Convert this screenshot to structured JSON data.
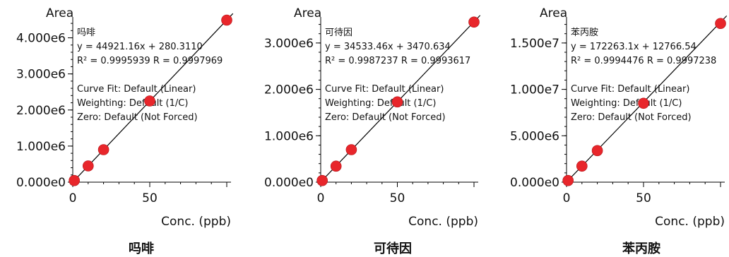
{
  "chart_data": [
    {
      "type": "scatter",
      "title": "吗啡",
      "ylabel": "Area",
      "xlabel": "Conc. (ppb)",
      "xlim": [
        0,
        100
      ],
      "ylim": [
        0,
        4500000
      ],
      "xticks": [
        0,
        50
      ],
      "yticks": [
        0,
        1000000,
        2000000,
        3000000,
        4000000
      ],
      "ytick_labels": [
        "0.000e0",
        "1.000e6",
        "2.000e6",
        "3.000e6",
        "4.000e6"
      ],
      "xtick_labels": [
        "0",
        "50"
      ],
      "points": [
        {
          "x": 1,
          "y": 45000
        },
        {
          "x": 10,
          "y": 450000
        },
        {
          "x": 20,
          "y": 900000
        },
        {
          "x": 50,
          "y": 2250000
        },
        {
          "x": 100,
          "y": 4490000
        }
      ],
      "fit": {
        "slope": 44921.16,
        "intercept": 280.311
      },
      "annotations": [
        "吗啡",
        "y = 44921.16x + 280.3110",
        "R² = 0.9995939    R = 0.9997969",
        "Curve Fit: Default (Linear)",
        "Weighting: Default (1/C)",
        "Zero: Default (Not Forced)"
      ],
      "colors": {
        "point": "#e8262b",
        "line": "#000000"
      }
    },
    {
      "type": "scatter",
      "title": "可待因",
      "ylabel": "Area",
      "xlabel": "Conc. (ppb)",
      "xlim": [
        0,
        100
      ],
      "ylim": [
        0,
        3500000
      ],
      "xticks": [
        0,
        50
      ],
      "yticks": [
        0,
        1000000,
        2000000,
        3000000
      ],
      "ytick_labels": [
        "0.000e0",
        "1.000e6",
        "2.000e6",
        "3.000e6"
      ],
      "xtick_labels": [
        "0",
        "50"
      ],
      "points": [
        {
          "x": 1,
          "y": 35000
        },
        {
          "x": 10,
          "y": 345000
        },
        {
          "x": 20,
          "y": 700000
        },
        {
          "x": 50,
          "y": 1730000
        },
        {
          "x": 100,
          "y": 3450000
        }
      ],
      "fit": {
        "slope": 34533.46,
        "intercept": 3470.634
      },
      "annotations": [
        "可待因",
        "y = 34533.46x + 3470.634",
        "R² = 0.9987237    R = 0.9993617",
        "Curve Fit: Default (Linear)",
        "Weighting: Default (1/C)",
        "Zero: Default (Not Forced)"
      ],
      "colors": {
        "point": "#e8262b",
        "line": "#000000"
      }
    },
    {
      "type": "scatter",
      "title": "苯丙胺",
      "ylabel": "Area",
      "xlabel": "Conc. (ppb)",
      "xlim": [
        0,
        100
      ],
      "ylim": [
        0,
        17500000
      ],
      "xticks": [
        0,
        50
      ],
      "yticks": [
        0,
        5000000,
        10000000,
        15000000
      ],
      "ytick_labels": [
        "0.000e0",
        "5.000e6",
        "1.000e7",
        "1.500e7"
      ],
      "xtick_labels": [
        "0",
        "50"
      ],
      "points": [
        {
          "x": 1,
          "y": 175000
        },
        {
          "x": 10,
          "y": 1730000
        },
        {
          "x": 20,
          "y": 3400000
        },
        {
          "x": 50,
          "y": 8500000
        },
        {
          "x": 100,
          "y": 17100000
        }
      ],
      "fit": {
        "slope": 172263.1,
        "intercept": 12766.54
      },
      "annotations": [
        "苯丙胺",
        "y = 172263.1x + 12766.54",
        "R² = 0.9994476    R = 0.9997238",
        "Curve Fit: Default (Linear)",
        "Weighting: Default (1/C)",
        "Zero: Default (Not Forced)"
      ],
      "colors": {
        "point": "#e8262b",
        "line": "#000000"
      }
    }
  ]
}
